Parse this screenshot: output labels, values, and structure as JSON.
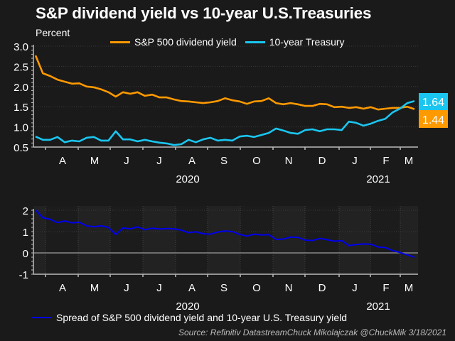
{
  "title": "S&P dividend yield vs 10-year U.S.Treasuries",
  "unit_label": "Percent",
  "source": "Source: Refinitiv DatastreamChuck Mikolajczak @ChuckMik 3/18/2021",
  "colors": {
    "background": "#1a1a1a",
    "sp500": "#ff9900",
    "treasury": "#1ac6f0",
    "spread": "#0000ee",
    "axis": "#bbbbbb",
    "grid": "#3a3a3a"
  },
  "chart_data": [
    {
      "type": "line",
      "title": "S&P dividend yield vs 10-year U.S.Treasuries",
      "ylabel": "Percent",
      "xlabel": "",
      "ylim": [
        0.5,
        3.0
      ],
      "yticks": [
        "3.0",
        "2.5",
        "2.0",
        "1.5",
        "1.0",
        "0.5"
      ],
      "ytick_values": [
        3.0,
        2.5,
        2.0,
        1.5,
        1.0,
        0.5
      ],
      "x_month_labels": [
        "A",
        "M",
        "J",
        "J",
        "A",
        "S",
        "O",
        "N",
        "D",
        "J",
        "F",
        "M"
      ],
      "x_year_labels": [
        {
          "label": "2020",
          "under": "A"
        },
        {
          "label": "2021",
          "under": "F"
        }
      ],
      "x_start": "2020-03-20",
      "x_end": "2021-03-18",
      "frequency": "weekly",
      "grid": "horizontal dotted",
      "legend": "top",
      "series": [
        {
          "name": "S&P 500 dividend yield",
          "color": "#ff9900",
          "end_label": "1.44",
          "values": [
            2.77,
            2.33,
            2.26,
            2.17,
            2.12,
            2.07,
            2.08,
            2.0,
            1.98,
            1.93,
            1.86,
            1.75,
            1.86,
            1.82,
            1.86,
            1.77,
            1.8,
            1.73,
            1.73,
            1.68,
            1.64,
            1.63,
            1.61,
            1.59,
            1.61,
            1.64,
            1.71,
            1.66,
            1.63,
            1.57,
            1.63,
            1.64,
            1.71,
            1.59,
            1.56,
            1.59,
            1.56,
            1.52,
            1.52,
            1.57,
            1.56,
            1.49,
            1.5,
            1.47,
            1.49,
            1.45,
            1.49,
            1.43,
            1.45,
            1.47,
            1.47,
            1.5,
            1.44
          ]
        },
        {
          "name": "10-year Treasury",
          "color": "#1ac6f0",
          "end_label": "1.64",
          "values": [
            0.76,
            0.68,
            0.68,
            0.75,
            0.62,
            0.66,
            0.64,
            0.73,
            0.75,
            0.66,
            0.66,
            0.89,
            0.69,
            0.69,
            0.64,
            0.68,
            0.64,
            0.61,
            0.59,
            0.55,
            0.57,
            0.68,
            0.62,
            0.69,
            0.73,
            0.66,
            0.68,
            0.66,
            0.76,
            0.78,
            0.75,
            0.8,
            0.85,
            0.96,
            0.91,
            0.85,
            0.83,
            0.92,
            0.94,
            0.89,
            0.94,
            0.94,
            0.92,
            1.13,
            1.1,
            1.03,
            1.08,
            1.15,
            1.2,
            1.36,
            1.45,
            1.59,
            1.64
          ]
        }
      ]
    },
    {
      "type": "line",
      "title": "",
      "ylim": [
        -1,
        2
      ],
      "yticks": [
        "2",
        "1",
        "0",
        "-1"
      ],
      "ytick_values": [
        2,
        1,
        0,
        -1
      ],
      "x_month_labels": [
        "A",
        "M",
        "J",
        "J",
        "A",
        "S",
        "O",
        "N",
        "D",
        "J",
        "F",
        "M"
      ],
      "x_year_labels": [
        {
          "label": "2020",
          "under": "A"
        },
        {
          "label": "2021",
          "under": "F"
        }
      ],
      "grid": "dotted, alternating month bands",
      "legend": "bottom",
      "series": [
        {
          "name": "Spread of S&P 500 dividend yield and 10-year U.S. Treasury yield",
          "color": "#0000ee",
          "values": [
            2.01,
            1.65,
            1.58,
            1.42,
            1.5,
            1.41,
            1.44,
            1.27,
            1.23,
            1.27,
            1.2,
            0.86,
            1.17,
            1.13,
            1.22,
            1.09,
            1.16,
            1.12,
            1.14,
            1.13,
            1.07,
            0.95,
            0.99,
            0.9,
            0.88,
            0.98,
            1.03,
            1.0,
            0.87,
            0.79,
            0.88,
            0.84,
            0.86,
            0.63,
            0.65,
            0.74,
            0.73,
            0.6,
            0.58,
            0.68,
            0.62,
            0.55,
            0.58,
            0.34,
            0.39,
            0.42,
            0.41,
            0.28,
            0.25,
            0.11,
            0.02,
            -0.09,
            -0.2
          ]
        }
      ]
    }
  ]
}
